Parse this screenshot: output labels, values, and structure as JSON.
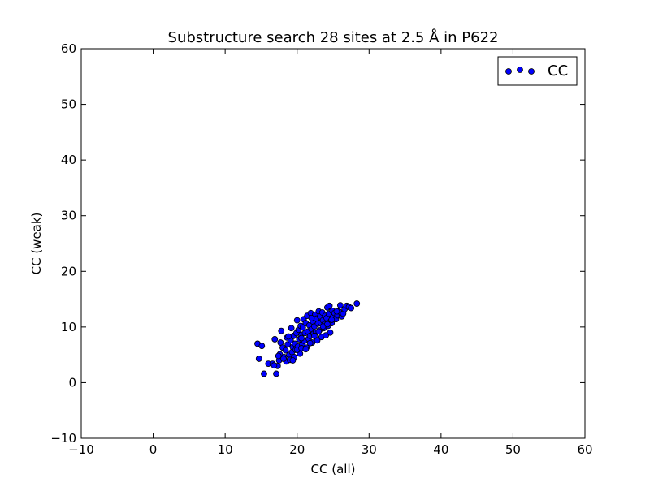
{
  "chart_data": {
    "type": "scatter",
    "title": "Substructure search 28 sites at 2.5 Å in P622",
    "xlabel": "CC (all)",
    "ylabel": "CC (weak)",
    "xlim": [
      -10,
      60
    ],
    "ylim": [
      -10,
      60
    ],
    "xticks": [
      "−10",
      "0",
      "10",
      "20",
      "30",
      "40",
      "50",
      "60"
    ],
    "yticks": [
      "−10",
      "0",
      "10",
      "20",
      "30",
      "40",
      "50",
      "60"
    ],
    "xtick_values": [
      -10,
      0,
      10,
      20,
      30,
      40,
      50,
      60
    ],
    "ytick_values": [
      -10,
      0,
      10,
      20,
      30,
      40,
      50,
      60
    ],
    "grid": false,
    "legend_position": "top-right",
    "series": [
      {
        "name": "CC",
        "color": "#0000ff",
        "points": [
          [
            14.5,
            7.0
          ],
          [
            15.1,
            6.6
          ],
          [
            14.7,
            4.3
          ],
          [
            15.4,
            1.6
          ],
          [
            16.0,
            3.4
          ],
          [
            16.6,
            3.4
          ],
          [
            17.1,
            1.6
          ],
          [
            16.9,
            7.8
          ],
          [
            17.3,
            3.0
          ],
          [
            17.5,
            4.0
          ],
          [
            17.6,
            5.1
          ],
          [
            17.7,
            7.2
          ],
          [
            17.8,
            9.3
          ],
          [
            18.0,
            6.3
          ],
          [
            18.2,
            4.6
          ],
          [
            18.4,
            5.8
          ],
          [
            18.5,
            3.8
          ],
          [
            18.6,
            8.1
          ],
          [
            18.7,
            6.9
          ],
          [
            18.9,
            5.0
          ],
          [
            19.0,
            4.1
          ],
          [
            19.1,
            7.6
          ],
          [
            19.2,
            9.8
          ],
          [
            19.3,
            5.5
          ],
          [
            19.4,
            6.4
          ],
          [
            19.5,
            8.4
          ],
          [
            19.6,
            4.6
          ],
          [
            19.7,
            7.0
          ],
          [
            19.8,
            5.9
          ],
          [
            19.9,
            8.9
          ],
          [
            20.0,
            11.2
          ],
          [
            20.1,
            6.5
          ],
          [
            20.2,
            9.5
          ],
          [
            20.3,
            7.8
          ],
          [
            20.4,
            5.2
          ],
          [
            20.5,
            10.2
          ],
          [
            20.6,
            8.6
          ],
          [
            20.7,
            6.9
          ],
          [
            20.8,
            9.9
          ],
          [
            20.9,
            11.4
          ],
          [
            21.0,
            7.5
          ],
          [
            21.1,
            8.9
          ],
          [
            21.2,
            10.7
          ],
          [
            21.3,
            6.3
          ],
          [
            21.4,
            12.0
          ],
          [
            21.5,
            9.2
          ],
          [
            21.6,
            7.9
          ],
          [
            21.7,
            10.3
          ],
          [
            21.8,
            8.4
          ],
          [
            21.9,
            12.5
          ],
          [
            22.0,
            9.6
          ],
          [
            22.1,
            7.2
          ],
          [
            22.2,
            11.0
          ],
          [
            22.3,
            8.8
          ],
          [
            22.4,
            10.1
          ],
          [
            22.5,
            12.2
          ],
          [
            22.6,
            9.0
          ],
          [
            22.7,
            11.5
          ],
          [
            22.8,
            7.6
          ],
          [
            22.9,
            10.6
          ],
          [
            23.0,
            12.8
          ],
          [
            23.1,
            9.4
          ],
          [
            23.2,
            11.9
          ],
          [
            23.3,
            10.8
          ],
          [
            23.4,
            8.2
          ],
          [
            23.5,
            12.6
          ],
          [
            23.6,
            11.2
          ],
          [
            23.7,
            9.8
          ],
          [
            23.8,
            10.5
          ],
          [
            23.9,
            12.0
          ],
          [
            24.0,
            8.5
          ],
          [
            24.1,
            11.6
          ],
          [
            24.2,
            13.5
          ],
          [
            24.3,
            10.2
          ],
          [
            24.4,
            12.4
          ],
          [
            24.5,
            13.8
          ],
          [
            24.6,
            9.0
          ],
          [
            24.7,
            11.1
          ],
          [
            24.8,
            10.7
          ],
          [
            24.9,
            12.9
          ],
          [
            25.0,
            11.8
          ],
          [
            25.2,
            12.5
          ],
          [
            25.4,
            11.4
          ],
          [
            25.6,
            12.1
          ],
          [
            25.8,
            12.8
          ],
          [
            26.0,
            13.9
          ],
          [
            26.2,
            11.9
          ],
          [
            26.4,
            12.4
          ],
          [
            26.6,
            13.2
          ],
          [
            26.9,
            13.8
          ],
          [
            27.2,
            13.6
          ],
          [
            27.5,
            13.4
          ],
          [
            28.3,
            14.2
          ],
          [
            16.8,
            3.1
          ],
          [
            17.4,
            4.8
          ],
          [
            18.1,
            4.3
          ],
          [
            18.8,
            8.3
          ],
          [
            19.4,
            4.0
          ],
          [
            20.0,
            5.9
          ],
          [
            20.6,
            6.2
          ],
          [
            21.2,
            6.0
          ],
          [
            21.8,
            7.1
          ],
          [
            22.4,
            8.4
          ],
          [
            23.0,
            9.2
          ],
          [
            23.6,
            10.1
          ],
          [
            24.2,
            10.5
          ],
          [
            24.8,
            11.3
          ],
          [
            25.5,
            12.8
          ],
          [
            22.0,
            11.6
          ],
          [
            20.6,
            8.0
          ]
        ]
      }
    ]
  }
}
